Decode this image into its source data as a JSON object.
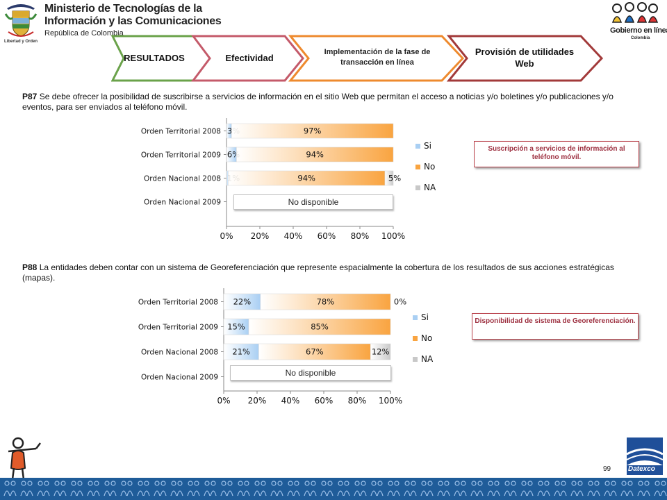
{
  "header": {
    "ministry_line1": "Ministerio de Tecnologías de la",
    "ministry_line2": "Información y las Comunicaciones",
    "ministry_line3": "República de Colombia",
    "motto": "Libertad y Orden",
    "gel_name": "Gobierno en línea",
    "gel_country": "Colombia"
  },
  "nav": {
    "items": [
      {
        "label": "RESULTADOS"
      },
      {
        "label": "Efectividad"
      },
      {
        "label": "Implementación de la fase de transacción en línea"
      },
      {
        "label": "Provisión de utilidades Web"
      }
    ]
  },
  "q1": {
    "code": "P87",
    "text": "Se debe ofrecer la posibilidad de suscribirse a servicios de información en el sitio Web que permitan el acceso a noticias y/o boletines y/o publicaciones y/o eventos, para ser enviados al teléfono móvil.",
    "callout": "Suscripción a servicios de información al teléfono móvil."
  },
  "q2": {
    "code": "P88",
    "text": "La entidades deben contar con un sistema de Georeferenciación que represente espacialmente la cobertura de los resultados de sus acciones estratégicas  (mapas).",
    "callout": "Disponibilidad de sistema de Georeferenciación."
  },
  "chart_data": [
    {
      "type": "bar",
      "orientation": "horizontal",
      "stacked": true,
      "categories": [
        "Orden Territorial 2008",
        "Orden Territorial 2009",
        "Orden Nacional 2008",
        "Orden Nacional 2009"
      ],
      "series": [
        {
          "name": "Si",
          "values": [
            3,
            6,
            1,
            null
          ],
          "labels": [
            "3%",
            "6%",
            "1%",
            ""
          ]
        },
        {
          "name": "No",
          "values": [
            97,
            94,
            94,
            null
          ],
          "labels": [
            "97%",
            "94%",
            "94%",
            ""
          ]
        },
        {
          "name": "NA",
          "values": [
            0,
            0,
            5,
            null
          ],
          "labels": [
            "",
            "",
            "5%",
            ""
          ]
        }
      ],
      "xticks": [
        "0%",
        "20%",
        "40%",
        "60%",
        "80%",
        "100%"
      ],
      "xlim": [
        0,
        100
      ],
      "grid": false,
      "legend": "right",
      "na_note": "No disponible",
      "colors": {
        "Si": "#a9cff3",
        "No": "#f9a440",
        "NA": "#c8c8c8"
      }
    },
    {
      "type": "bar",
      "orientation": "horizontal",
      "stacked": true,
      "categories": [
        "Orden Territorial 2008",
        "Orden Territorial 2009",
        "Orden Nacional 2008",
        "Orden Nacional 2009"
      ],
      "series": [
        {
          "name": "Si",
          "values": [
            22,
            15,
            21,
            null
          ],
          "labels": [
            "22%",
            "15%",
            "21%",
            ""
          ]
        },
        {
          "name": "No",
          "values": [
            78,
            85,
            67,
            null
          ],
          "labels": [
            "78%",
            "85%",
            "67%",
            ""
          ]
        },
        {
          "name": "NA",
          "values": [
            0,
            0,
            12,
            null
          ],
          "labels": [
            "0%",
            "",
            "12%",
            ""
          ]
        }
      ],
      "xticks": [
        "0%",
        "20%",
        "40%",
        "60%",
        "80%",
        "100%"
      ],
      "xlim": [
        0,
        100
      ],
      "grid": false,
      "legend": "right",
      "na_note": "No disponible",
      "colors": {
        "Si": "#a9cff3",
        "No": "#f9a440",
        "NA": "#c8c8c8"
      }
    }
  ],
  "page_number": "99",
  "footer_brand": "Datexco"
}
